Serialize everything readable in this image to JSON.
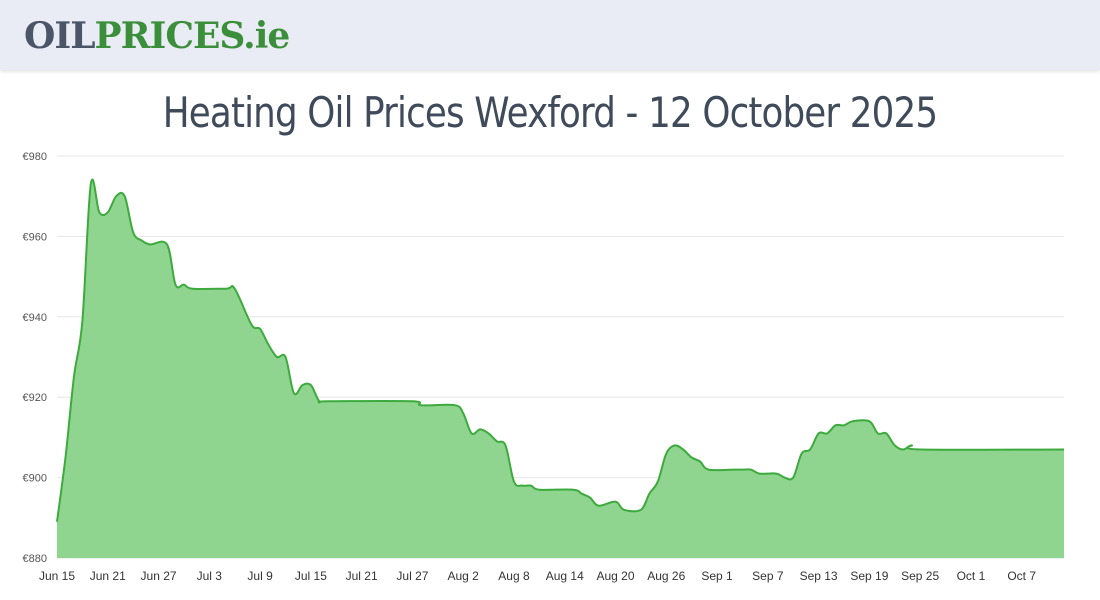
{
  "header": {
    "logo": {
      "part1": "OIL",
      "part2": "PRICES",
      "part3": ".ie"
    }
  },
  "page_title": "Heating Oil Prices Wexford - 12 October 2025",
  "colors": {
    "line": "#3daa3d",
    "fill": "#8fd58f",
    "grid": "#e6e6e6",
    "header_bg": "#e9ecf4"
  },
  "chart_data": {
    "type": "area",
    "title": "Heating Oil Prices Wexford - 12 October 2025",
    "xlabel": "",
    "ylabel": "",
    "y_prefix": "€",
    "ylim": [
      880,
      980
    ],
    "yticks": [
      880,
      900,
      920,
      940,
      960,
      980
    ],
    "xlim": [
      "2025-06-15",
      "2025-10-12"
    ],
    "xticks": [
      {
        "date": "2025-06-15",
        "label": "Jun 15"
      },
      {
        "date": "2025-06-21",
        "label": "Jun 21"
      },
      {
        "date": "2025-06-27",
        "label": "Jun 27"
      },
      {
        "date": "2025-07-03",
        "label": "Jul 3"
      },
      {
        "date": "2025-07-09",
        "label": "Jul 9"
      },
      {
        "date": "2025-07-15",
        "label": "Jul 15"
      },
      {
        "date": "2025-07-21",
        "label": "Jul 21"
      },
      {
        "date": "2025-07-27",
        "label": "Jul 27"
      },
      {
        "date": "2025-08-02",
        "label": "Aug 2"
      },
      {
        "date": "2025-08-08",
        "label": "Aug 8"
      },
      {
        "date": "2025-08-14",
        "label": "Aug 14"
      },
      {
        "date": "2025-08-20",
        "label": "Aug 20"
      },
      {
        "date": "2025-08-26",
        "label": "Aug 26"
      },
      {
        "date": "2025-09-01",
        "label": "Sep 1"
      },
      {
        "date": "2025-09-07",
        "label": "Sep 7"
      },
      {
        "date": "2025-09-13",
        "label": "Sep 13"
      },
      {
        "date": "2025-09-19",
        "label": "Sep 19"
      },
      {
        "date": "2025-09-25",
        "label": "Sep 25"
      },
      {
        "date": "2025-10-01",
        "label": "Oct 1"
      },
      {
        "date": "2025-10-07",
        "label": "Oct 7"
      }
    ],
    "grid": true,
    "legend": "none",
    "points": [
      [
        "2025-06-15",
        889
      ],
      [
        "2025-06-16",
        905
      ],
      [
        "2025-06-17",
        925
      ],
      [
        "2025-06-18",
        939
      ],
      [
        "2025-06-19",
        973
      ],
      [
        "2025-06-20",
        966
      ],
      [
        "2025-06-21",
        966
      ],
      [
        "2025-06-22",
        970
      ],
      [
        "2025-06-23",
        970
      ],
      [
        "2025-06-24",
        961
      ],
      [
        "2025-06-25",
        959
      ],
      [
        "2025-06-26",
        958
      ],
      [
        "2025-06-28",
        958
      ],
      [
        "2025-06-29",
        948
      ],
      [
        "2025-06-30",
        948
      ],
      [
        "2025-07-01",
        947
      ],
      [
        "2025-07-05",
        947
      ],
      [
        "2025-07-06",
        947
      ],
      [
        "2025-07-08",
        938
      ],
      [
        "2025-07-09",
        937
      ],
      [
        "2025-07-10",
        933
      ],
      [
        "2025-07-11",
        930
      ],
      [
        "2025-07-12",
        930
      ],
      [
        "2025-07-13",
        921
      ],
      [
        "2025-07-14",
        923
      ],
      [
        "2025-07-15",
        923
      ],
      [
        "2025-07-16",
        919
      ],
      [
        "2025-07-17",
        919
      ],
      [
        "2025-07-27",
        919
      ],
      [
        "2025-07-28",
        918
      ],
      [
        "2025-08-01",
        918
      ],
      [
        "2025-08-02",
        916
      ],
      [
        "2025-08-03",
        911
      ],
      [
        "2025-08-04",
        912
      ],
      [
        "2025-08-05",
        911
      ],
      [
        "2025-08-06",
        909
      ],
      [
        "2025-08-07",
        908
      ],
      [
        "2025-08-08",
        899
      ],
      [
        "2025-08-09",
        898
      ],
      [
        "2025-08-10",
        898
      ],
      [
        "2025-08-11",
        897
      ],
      [
        "2025-08-15",
        897
      ],
      [
        "2025-08-16",
        896
      ],
      [
        "2025-08-17",
        895
      ],
      [
        "2025-08-18",
        893
      ],
      [
        "2025-08-20",
        894
      ],
      [
        "2025-08-21",
        892
      ],
      [
        "2025-08-23",
        892
      ],
      [
        "2025-08-24",
        896
      ],
      [
        "2025-08-25",
        899
      ],
      [
        "2025-08-26",
        906
      ],
      [
        "2025-08-27",
        908
      ],
      [
        "2025-08-28",
        907
      ],
      [
        "2025-08-29",
        905
      ],
      [
        "2025-08-30",
        904
      ],
      [
        "2025-08-31",
        902
      ],
      [
        "2025-09-03",
        902
      ],
      [
        "2025-09-04",
        902
      ],
      [
        "2025-09-05",
        902
      ],
      [
        "2025-09-06",
        901
      ],
      [
        "2025-09-08",
        901
      ],
      [
        "2025-09-09",
        900
      ],
      [
        "2025-09-10",
        900
      ],
      [
        "2025-09-11",
        906
      ],
      [
        "2025-09-12",
        907
      ],
      [
        "2025-09-13",
        911
      ],
      [
        "2025-09-14",
        911
      ],
      [
        "2025-09-15",
        913
      ],
      [
        "2025-09-16",
        913
      ],
      [
        "2025-09-17",
        914
      ],
      [
        "2025-09-19",
        914
      ],
      [
        "2025-09-20",
        911
      ],
      [
        "2025-09-21",
        911
      ],
      [
        "2025-09-22",
        908
      ],
      [
        "2025-09-23",
        907
      ],
      [
        "2025-09-24",
        908
      ],
      [
        "2025-09-25",
        907
      ]
    ]
  }
}
